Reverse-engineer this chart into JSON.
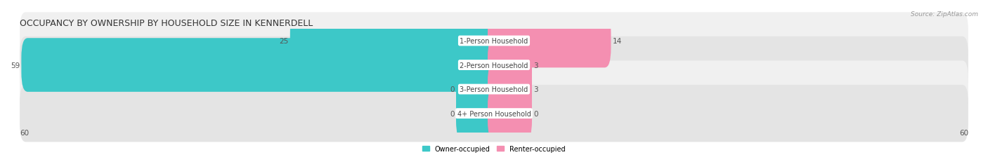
{
  "title": "OCCUPANCY BY OWNERSHIP BY HOUSEHOLD SIZE IN KENNERDELL",
  "source": "Source: ZipAtlas.com",
  "categories": [
    "1-Person Household",
    "2-Person Household",
    "3-Person Household",
    "4+ Person Household"
  ],
  "owner_values": [
    25,
    59,
    0,
    0
  ],
  "renter_values": [
    14,
    3,
    3,
    0
  ],
  "owner_color": "#3dc8c8",
  "renter_color": "#f48fb1",
  "row_bg_colors": [
    "#f0f0f0",
    "#e4e4e4",
    "#f0f0f0",
    "#e4e4e4"
  ],
  "x_max": 60,
  "axis_label_left": "60",
  "axis_label_right": "60",
  "legend_owner": "Owner-occupied",
  "legend_renter": "Renter-occupied",
  "title_fontsize": 9,
  "label_fontsize": 7,
  "value_fontsize": 7.5,
  "background_color": "#ffffff",
  "min_bar_width": 4.0
}
